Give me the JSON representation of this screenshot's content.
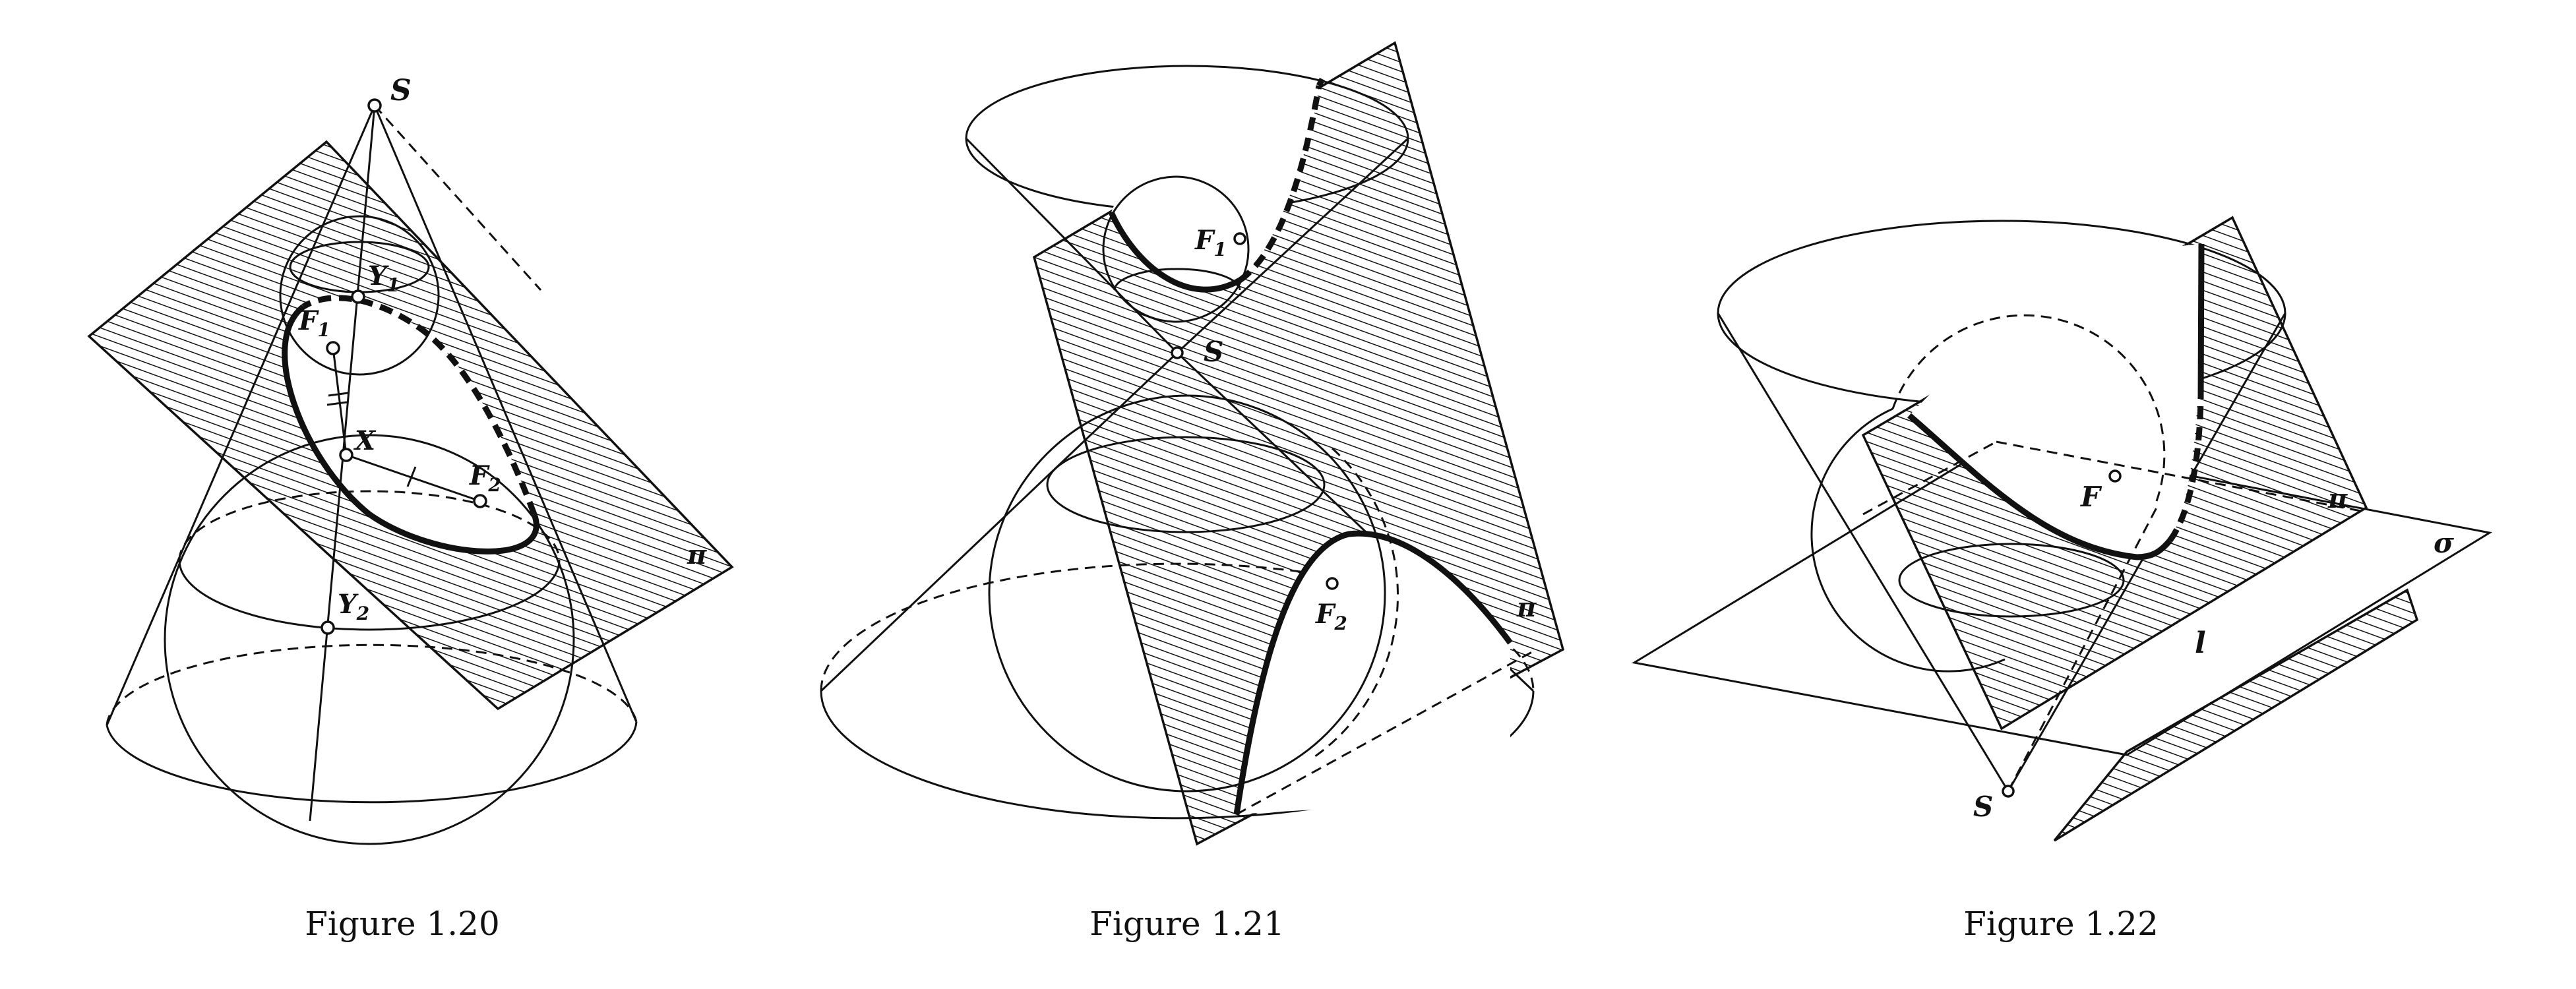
{
  "figures": [
    {
      "caption": "Figure 1.20",
      "labels": {
        "apex": "S",
        "y1": "Y",
        "y1_sub": "1",
        "y2": "Y",
        "y2_sub": "2",
        "f1": "F",
        "f1_sub": "1",
        "f2": "F",
        "f2_sub": "2",
        "x": "X",
        "plane": "π"
      }
    },
    {
      "caption": "Figure 1.21",
      "labels": {
        "f1": "F",
        "f1_sub": "1",
        "f2": "F",
        "f2_sub": "2",
        "apex": "S",
        "plane": "π"
      }
    },
    {
      "caption": "Figure 1.22",
      "labels": {
        "focus": "F",
        "plane": "π",
        "sigma": "σ",
        "directrix": "l",
        "apex": "S"
      }
    }
  ],
  "colors": {
    "ink": "#111111",
    "paper": "#ffffff"
  }
}
